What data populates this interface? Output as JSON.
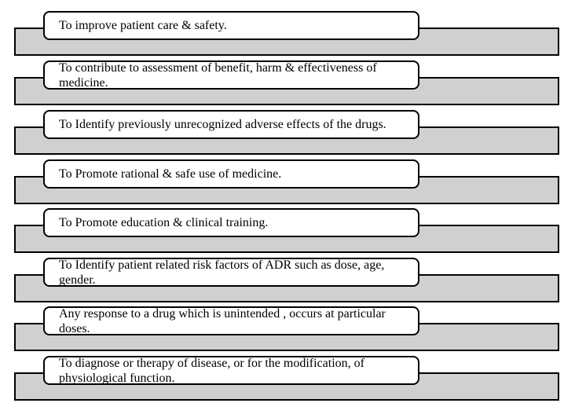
{
  "items": [
    "To improve patient care & safety.",
    "To contribute to assessment of benefit, harm & effectiveness of medicine.",
    "To Identify previously unrecognized adverse effects of the drugs.",
    "To Promote rational & safe use of medicine.",
    "To Promote education & clinical training.",
    "To Identify patient related risk factors of ADR such as dose, age, gender.",
    "Any response to a drug which is unintended , occurs at particular doses.",
    "To diagnose or therapy of disease, or for the modification, of physiological function."
  ],
  "colors": {
    "bar_fill": "#d0d0d0",
    "box_fill": "#ffffff",
    "border": "#000000"
  }
}
